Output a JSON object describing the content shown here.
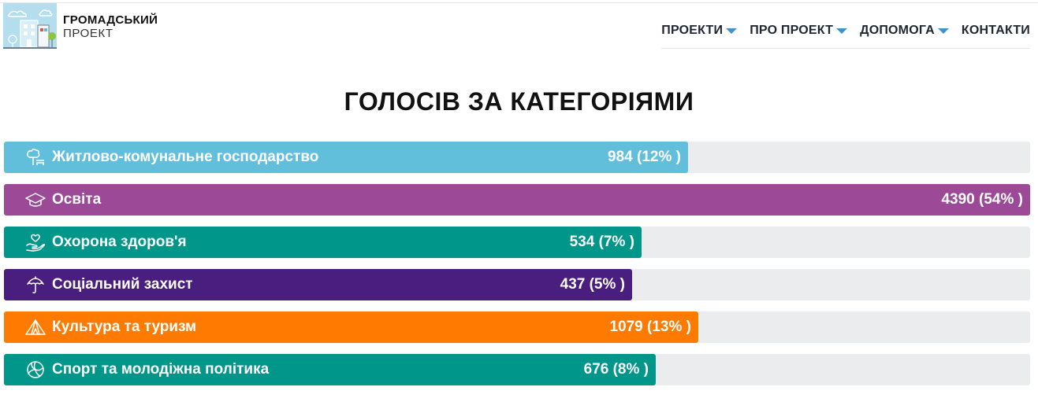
{
  "header": {
    "logo_line1": "ГРОМАДСЬКИЙ",
    "logo_line2": "ПРОЕКТ",
    "nav": [
      {
        "label": "ПРОЕКТИ",
        "has_dropdown": true
      },
      {
        "label": "ПРО ПРОЕКТ",
        "has_dropdown": true
      },
      {
        "label": "ДОПОМОГА",
        "has_dropdown": true
      },
      {
        "label": "КОНТАКТИ",
        "has_dropdown": false
      }
    ]
  },
  "page_title": "ГОЛОСІВ ЗА КАТЕГОРІЯМИ",
  "categories": [
    {
      "label": "Житлово-комунальне господарство",
      "value_text": "984 (12% )",
      "votes": 984,
      "fill_fraction": 0.667,
      "color": "#62bfdc",
      "icon": "park-bench-icon"
    },
    {
      "label": "Освіта",
      "value_text": "4390 (54% )",
      "votes": 4390,
      "fill_fraction": 1.0,
      "color": "#9c4a98",
      "icon": "graduation-cap-icon"
    },
    {
      "label": "Охорона здоров'я",
      "value_text": "534 (7% )",
      "votes": 534,
      "fill_fraction": 0.621,
      "color": "#00978a",
      "icon": "hand-heart-icon"
    },
    {
      "label": "Соціальний захист",
      "value_text": "437 (5% )",
      "votes": 437,
      "fill_fraction": 0.612,
      "color": "#4a1e7e",
      "icon": "umbrella-icon"
    },
    {
      "label": "Культура та туризм",
      "value_text": "1079 (13% )",
      "votes": 1079,
      "fill_fraction": 0.677,
      "color": "#ff7a00",
      "icon": "tent-icon"
    },
    {
      "label": "Спорт та молодіжна політика",
      "value_text": "676 (8% )",
      "votes": 676,
      "fill_fraction": 0.635,
      "color": "#00978a",
      "icon": "volleyball-icon"
    }
  ]
}
